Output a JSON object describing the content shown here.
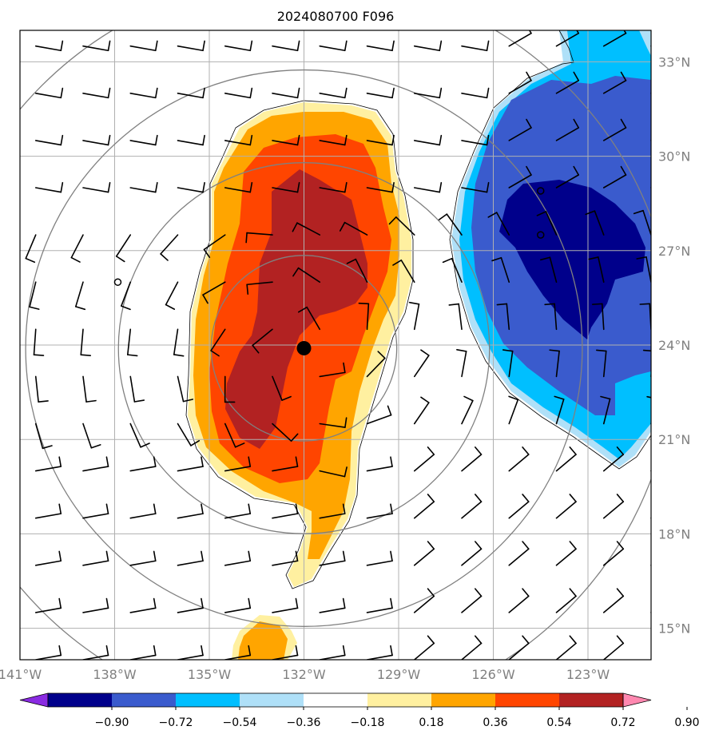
{
  "title": "2024080700 F096",
  "map": {
    "lon_range": [
      -141.0,
      -121.0
    ],
    "lat_range": [
      14.0,
      34.0
    ],
    "lon_ticks": [
      {
        "value": -141,
        "label": "141°W"
      },
      {
        "value": -138,
        "label": "138°W"
      },
      {
        "value": -135,
        "label": "135°W"
      },
      {
        "value": -132,
        "label": "132°W"
      },
      {
        "value": -129,
        "label": "129°W"
      },
      {
        "value": -126,
        "label": "126°W"
      },
      {
        "value": -123,
        "label": "123°W"
      }
    ],
    "lat_ticks": [
      {
        "value": 15,
        "label": "15°N"
      },
      {
        "value": 18,
        "label": "18°N"
      },
      {
        "value": 21,
        "label": "21°N"
      },
      {
        "value": 24,
        "label": "24°N"
      },
      {
        "value": 27,
        "label": "27°N"
      },
      {
        "value": 30,
        "label": "30°N"
      },
      {
        "value": 33,
        "label": "33°N"
      }
    ],
    "storm_center": {
      "lon": -132.0,
      "lat": 23.9
    },
    "range_rings_deg": [
      3,
      6,
      9,
      12
    ],
    "small_markers": [
      {
        "lon": -137.9,
        "lat": 26.0
      },
      {
        "lon": -124.5,
        "lat": 28.9
      },
      {
        "lon": -124.5,
        "lat": 27.5
      }
    ]
  },
  "colorbar": {
    "colors": [
      "#8a2be2",
      "#00008b",
      "#3a5bcd",
      "#00bfff",
      "#afe0f8",
      "#ffffff",
      "#fff0a0",
      "#ffa500",
      "#ff4500",
      "#b22222",
      "#ff88b0"
    ],
    "tick_labels": [
      "−0.90",
      "−0.72",
      "−0.54",
      "−0.36",
      "−0.18",
      "0.18",
      "0.36",
      "0.54",
      "0.72",
      "0.90"
    ],
    "extend": "both"
  },
  "field_colors": {
    "pos_036": "#fff0a0",
    "pos_054": "#ffa500",
    "pos_072": "#ff4500",
    "pos_090": "#b22222",
    "neg_018": "#afe0f8",
    "neg_036": "#00bfff",
    "neg_054": "#3a5bcd",
    "neg_072": "#00008b"
  }
}
